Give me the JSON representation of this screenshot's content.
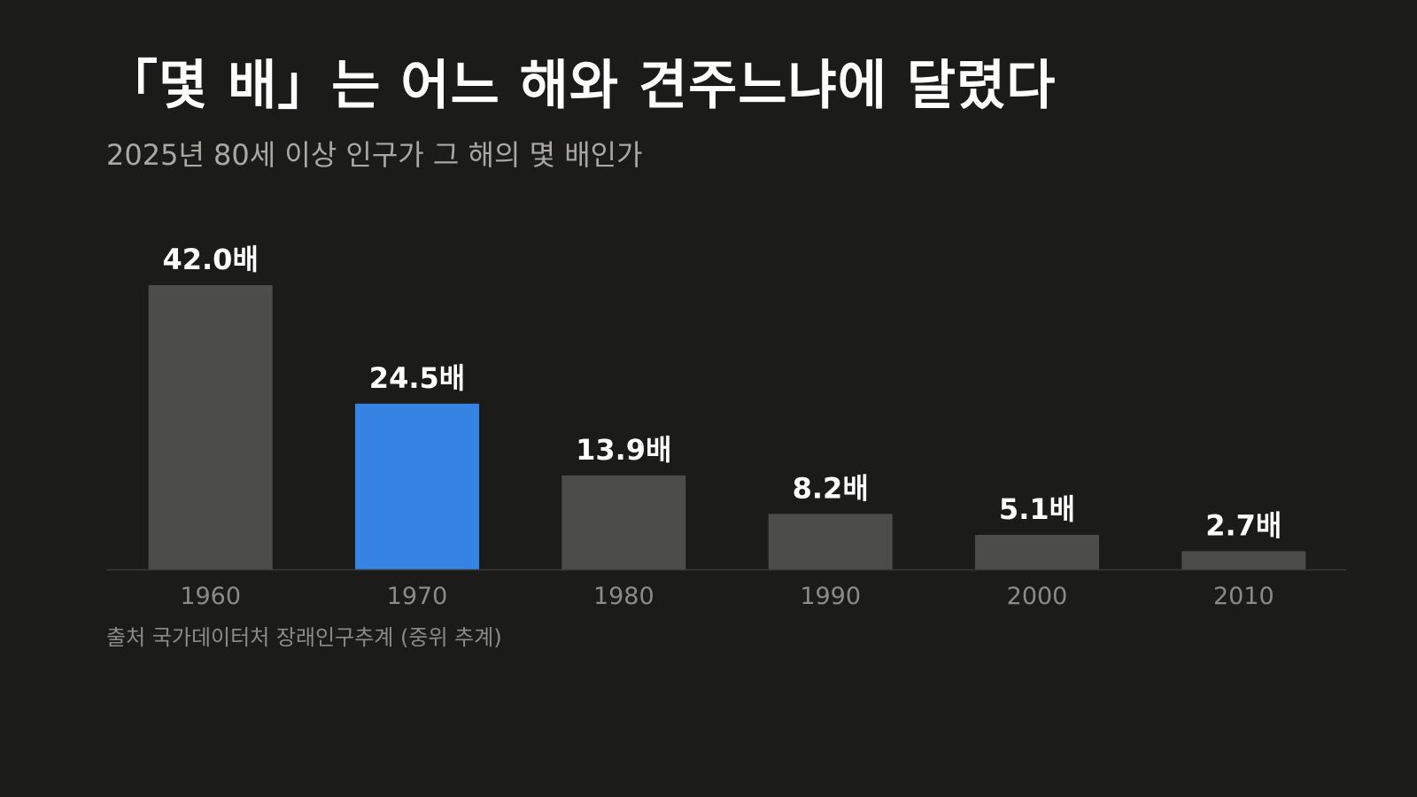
{
  "title": "「몇 배」는 어느 해와 견주느냐에 달렸다",
  "subtitle": "2025년 80세 이상 인구가 그 해의 몇 배인가",
  "source": "출처 국가데이터처 장래인구추계 (중위 추계)",
  "colors": {
    "background": "#1b1b1a",
    "bar": "#4c4c48",
    "highlight": "#3584e4",
    "baseline": "#3a3a37",
    "value_label": "#ffffff",
    "tick_label": "#8c8b85"
  },
  "chart_data": {
    "type": "bar",
    "categories": [
      "1960",
      "1970",
      "1980",
      "1990",
      "2000",
      "2010"
    ],
    "values": [
      42.0,
      24.5,
      13.9,
      8.2,
      5.1,
      2.7
    ],
    "value_labels": [
      "42.0배",
      "24.5배",
      "13.9배",
      "8.2배",
      "5.1배",
      "2.7배"
    ],
    "highlight_category": "1970",
    "title": "「몇 배」는 어느 해와 견주느냐에 달렸다",
    "subtitle": "2025년 80세 이상 인구가 그 해의 몇 배인가",
    "ylim": [
      0,
      42.0
    ],
    "grid": false,
    "legend": "none"
  }
}
